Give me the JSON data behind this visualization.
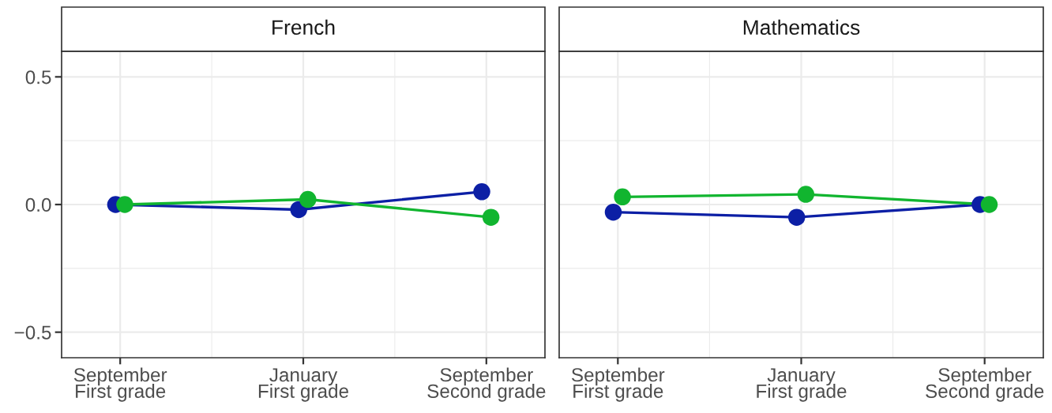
{
  "chart_data": [
    {
      "type": "line",
      "title": "French",
      "categories": [
        "September\nFirst grade",
        "January\nFirst grade",
        "September\nSecond grade"
      ],
      "series": [
        {
          "color": "#0c1fa5",
          "values": [
            0.0,
            -0.02,
            0.05
          ]
        },
        {
          "color": "#11b52f",
          "values": [
            0.0,
            0.02,
            -0.05
          ]
        }
      ],
      "ylim": [
        -0.6,
        0.6
      ],
      "yticks": [
        {
          "value": -0.5,
          "label": "−0.5"
        },
        {
          "value": 0,
          "label": "0.0"
        },
        {
          "value": 0.5,
          "label": "0.5"
        }
      ],
      "grid": true,
      "marker": "circle",
      "line_style": "solid"
    },
    {
      "type": "line",
      "title": "Mathematics",
      "categories": [
        "September\nFirst grade",
        "January\nFirst grade",
        "September\nSecond grade"
      ],
      "series": [
        {
          "color": "#0c1fa5",
          "values": [
            -0.03,
            -0.05,
            0.0
          ]
        },
        {
          "color": "#11b52f",
          "values": [
            0.03,
            0.04,
            0.0
          ]
        }
      ],
      "ylim": [
        -0.6,
        0.6
      ],
      "yticks": [
        {
          "value": -0.5,
          "label": null
        },
        {
          "value": 0,
          "label": null
        },
        {
          "value": 0.5,
          "label": null
        }
      ],
      "grid": true,
      "marker": "circle",
      "line_style": "solid",
      "tick_labels": "x"
    }
  ]
}
